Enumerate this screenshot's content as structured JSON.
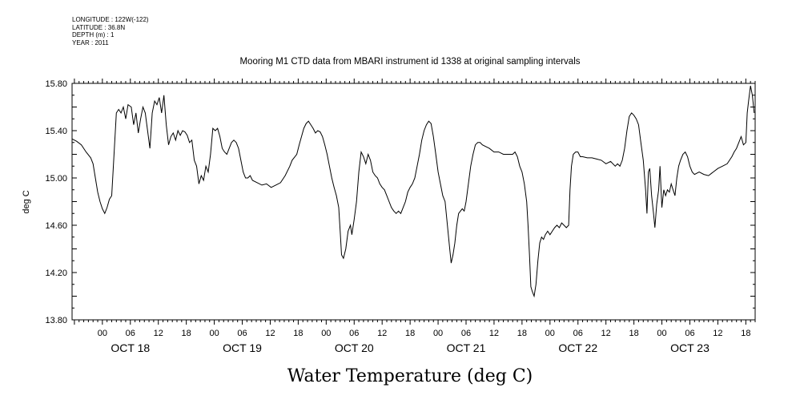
{
  "meta": {
    "longitude": "LONGITUDE : 122W(-122)",
    "latitude": "LATITUDE : 36.8N",
    "depth": "DEPTH (m) : 1",
    "year": "YEAR : 2011"
  },
  "chart_data": {
    "type": "line",
    "title": "Mooring M1 CTD data from MBARI instrument id 1338 at original sampling intervals",
    "xlabel": "Water Temperature (deg C)",
    "ylabel": "deg C",
    "ylim": [
      13.8,
      15.8
    ],
    "yticks": [
      "13.80",
      "14.20",
      "14.60",
      "15.00",
      "15.40",
      "15.80"
    ],
    "xlim_hours_from_oct18_00": [
      -24.5,
      122
    ],
    "hour_ticks": [
      {
        "h": -18,
        "label": "00"
      },
      {
        "h": -12,
        "label": "06"
      },
      {
        "h": -6,
        "label": "12"
      },
      {
        "h": 0,
        "label": "18"
      },
      {
        "h": 6,
        "label": "00"
      },
      {
        "h": 12,
        "label": "06"
      },
      {
        "h": 18,
        "label": "12"
      },
      {
        "h": 24,
        "label": "18"
      },
      {
        "h": 30,
        "label": "00"
      },
      {
        "h": 36,
        "label": "06"
      },
      {
        "h": 42,
        "label": "12"
      },
      {
        "h": 48,
        "label": "18"
      },
      {
        "h": 54,
        "label": "00"
      },
      {
        "h": 60,
        "label": "06"
      },
      {
        "h": 66,
        "label": "12"
      },
      {
        "h": 72,
        "label": "18"
      },
      {
        "h": 78,
        "label": "00"
      },
      {
        "h": 84,
        "label": "06"
      },
      {
        "h": 90,
        "label": "12"
      },
      {
        "h": 96,
        "label": "18"
      },
      {
        "h": 102,
        "label": "00"
      },
      {
        "h": 108,
        "label": "06"
      },
      {
        "h": 114,
        "label": "12"
      },
      {
        "h": 120,
        "label": "18"
      }
    ],
    "date_labels": [
      {
        "h": -12,
        "label": "OCT 18"
      },
      {
        "h": 12,
        "label": "OCT 19"
      },
      {
        "h": 36,
        "label": "OCT 20"
      },
      {
        "h": 60,
        "label": "OCT 21"
      },
      {
        "h": 84,
        "label": "OCT 22"
      },
      {
        "h": 108,
        "label": "OCT 23"
      }
    ],
    "series": [
      {
        "values_h_temp": [
          [
            -24.5,
            15.33
          ],
          [
            -23.5,
            15.31
          ],
          [
            -22.5,
            15.28
          ],
          [
            -21.5,
            15.22
          ],
          [
            -20.5,
            15.17
          ],
          [
            -20,
            15.12
          ],
          [
            -19.5,
            15.0
          ],
          [
            -19,
            14.88
          ],
          [
            -18.5,
            14.8
          ],
          [
            -18,
            14.74
          ],
          [
            -17.5,
            14.7
          ],
          [
            -17,
            14.75
          ],
          [
            -16.5,
            14.82
          ],
          [
            -16,
            14.85
          ],
          [
            -15.5,
            15.2
          ],
          [
            -15,
            15.55
          ],
          [
            -14.5,
            15.58
          ],
          [
            -14,
            15.55
          ],
          [
            -13.5,
            15.6
          ],
          [
            -13,
            15.5
          ],
          [
            -12.5,
            15.62
          ],
          [
            -11.8,
            15.6
          ],
          [
            -11.3,
            15.45
          ],
          [
            -10.8,
            15.55
          ],
          [
            -10.3,
            15.38
          ],
          [
            -9.8,
            15.5
          ],
          [
            -9.3,
            15.6
          ],
          [
            -8.8,
            15.55
          ],
          [
            -8.3,
            15.4
          ],
          [
            -7.8,
            15.25
          ],
          [
            -7.3,
            15.55
          ],
          [
            -6.8,
            15.65
          ],
          [
            -6.3,
            15.62
          ],
          [
            -5.8,
            15.68
          ],
          [
            -5.3,
            15.55
          ],
          [
            -4.8,
            15.7
          ],
          [
            -4.3,
            15.45
          ],
          [
            -3.8,
            15.28
          ],
          [
            -3.3,
            15.35
          ],
          [
            -2.8,
            15.38
          ],
          [
            -2.3,
            15.32
          ],
          [
            -1.8,
            15.4
          ],
          [
            -1.3,
            15.36
          ],
          [
            -0.8,
            15.4
          ],
          [
            -0.3,
            15.39
          ],
          [
            0.2,
            15.36
          ],
          [
            0.7,
            15.3
          ],
          [
            1.2,
            15.32
          ],
          [
            1.7,
            15.15
          ],
          [
            2.2,
            15.1
          ],
          [
            2.7,
            14.95
          ],
          [
            3.2,
            15.02
          ],
          [
            3.7,
            14.98
          ],
          [
            4.2,
            15.1
          ],
          [
            4.7,
            15.05
          ],
          [
            5.2,
            15.2
          ],
          [
            5.7,
            15.42
          ],
          [
            6.2,
            15.4
          ],
          [
            6.7,
            15.42
          ],
          [
            7.2,
            15.35
          ],
          [
            7.7,
            15.25
          ],
          [
            8.2,
            15.22
          ],
          [
            8.7,
            15.2
          ],
          [
            9.2,
            15.25
          ],
          [
            9.7,
            15.3
          ],
          [
            10.2,
            15.32
          ],
          [
            10.7,
            15.3
          ],
          [
            11.2,
            15.25
          ],
          [
            11.7,
            15.15
          ],
          [
            12.2,
            15.05
          ],
          [
            12.7,
            15.0
          ],
          [
            13.2,
            15.0
          ],
          [
            13.7,
            15.02
          ],
          [
            14.2,
            14.98
          ],
          [
            15.2,
            14.96
          ],
          [
            16.2,
            14.94
          ],
          [
            17.2,
            14.95
          ],
          [
            18.2,
            14.92
          ],
          [
            19.2,
            14.94
          ],
          [
            20.2,
            14.96
          ],
          [
            21.2,
            15.02
          ],
          [
            22.2,
            15.1
          ],
          [
            22.7,
            15.15
          ],
          [
            23.7,
            15.2
          ],
          [
            24.2,
            15.28
          ],
          [
            24.7,
            15.35
          ],
          [
            25.2,
            15.42
          ],
          [
            25.7,
            15.46
          ],
          [
            26.2,
            15.48
          ],
          [
            26.7,
            15.45
          ],
          [
            27.2,
            15.42
          ],
          [
            27.7,
            15.38
          ],
          [
            28.2,
            15.4
          ],
          [
            28.7,
            15.39
          ],
          [
            29.2,
            15.35
          ],
          [
            29.7,
            15.28
          ],
          [
            30.2,
            15.2
          ],
          [
            30.7,
            15.1
          ],
          [
            31.2,
            15.0
          ],
          [
            31.7,
            14.92
          ],
          [
            32.2,
            14.85
          ],
          [
            32.7,
            14.75
          ],
          [
            33.0,
            14.55
          ],
          [
            33.3,
            14.35
          ],
          [
            33.7,
            14.32
          ],
          [
            34.2,
            14.4
          ],
          [
            34.7,
            14.55
          ],
          [
            35.2,
            14.6
          ],
          [
            35.5,
            14.52
          ],
          [
            36.0,
            14.65
          ],
          [
            36.5,
            14.8
          ],
          [
            37.0,
            15.05
          ],
          [
            37.5,
            15.22
          ],
          [
            38.0,
            15.18
          ],
          [
            38.5,
            15.12
          ],
          [
            39.0,
            15.2
          ],
          [
            39.5,
            15.15
          ],
          [
            40.0,
            15.05
          ],
          [
            40.5,
            15.02
          ],
          [
            41.0,
            15.0
          ],
          [
            41.5,
            14.95
          ],
          [
            42.0,
            14.92
          ],
          [
            42.5,
            14.9
          ],
          [
            43.0,
            14.85
          ],
          [
            43.5,
            14.8
          ],
          [
            44.0,
            14.75
          ],
          [
            44.5,
            14.72
          ],
          [
            45.0,
            14.7
          ],
          [
            45.5,
            14.72
          ],
          [
            46.0,
            14.7
          ],
          [
            46.5,
            14.75
          ],
          [
            47.0,
            14.8
          ],
          [
            47.5,
            14.88
          ],
          [
            48.0,
            14.92
          ],
          [
            48.5,
            14.95
          ],
          [
            49.0,
            15.0
          ],
          [
            49.5,
            15.1
          ],
          [
            50.0,
            15.2
          ],
          [
            50.5,
            15.32
          ],
          [
            51.0,
            15.4
          ],
          [
            51.5,
            15.45
          ],
          [
            52.0,
            15.48
          ],
          [
            52.5,
            15.46
          ],
          [
            53.0,
            15.35
          ],
          [
            53.5,
            15.2
          ],
          [
            54.0,
            15.05
          ],
          [
            54.5,
            14.95
          ],
          [
            55.0,
            14.85
          ],
          [
            55.5,
            14.8
          ],
          [
            56.0,
            14.6
          ],
          [
            56.5,
            14.4
          ],
          [
            56.8,
            14.28
          ],
          [
            57.2,
            14.35
          ],
          [
            57.6,
            14.45
          ],
          [
            58.0,
            14.6
          ],
          [
            58.4,
            14.7
          ],
          [
            58.8,
            14.72
          ],
          [
            59.2,
            14.74
          ],
          [
            59.6,
            14.72
          ],
          [
            60.0,
            14.8
          ],
          [
            60.5,
            14.95
          ],
          [
            61.0,
            15.1
          ],
          [
            61.5,
            15.2
          ],
          [
            62.0,
            15.28
          ],
          [
            62.5,
            15.3
          ],
          [
            63.0,
            15.3
          ],
          [
            63.5,
            15.28
          ],
          [
            64.0,
            15.27
          ],
          [
            65.0,
            15.25
          ],
          [
            66.0,
            15.22
          ],
          [
            67.0,
            15.22
          ],
          [
            68.0,
            15.2
          ],
          [
            69.0,
            15.2
          ],
          [
            70.0,
            15.2
          ],
          [
            70.5,
            15.22
          ],
          [
            71.0,
            15.18
          ],
          [
            71.5,
            15.1
          ],
          [
            72.0,
            15.05
          ],
          [
            72.5,
            14.95
          ],
          [
            73.0,
            14.8
          ],
          [
            73.3,
            14.6
          ],
          [
            73.6,
            14.35
          ],
          [
            73.9,
            14.08
          ],
          [
            74.2,
            14.04
          ],
          [
            74.6,
            14.0
          ],
          [
            75.0,
            14.1
          ],
          [
            75.4,
            14.3
          ],
          [
            75.8,
            14.45
          ],
          [
            76.2,
            14.5
          ],
          [
            76.6,
            14.48
          ],
          [
            77.0,
            14.52
          ],
          [
            77.5,
            14.55
          ],
          [
            78.0,
            14.52
          ],
          [
            78.5,
            14.55
          ],
          [
            79.0,
            14.58
          ],
          [
            79.5,
            14.6
          ],
          [
            80.0,
            14.58
          ],
          [
            80.5,
            14.62
          ],
          [
            81.0,
            14.6
          ],
          [
            81.5,
            14.58
          ],
          [
            82.0,
            14.6
          ],
          [
            82.3,
            14.9
          ],
          [
            82.6,
            15.1
          ],
          [
            83.0,
            15.2
          ],
          [
            83.5,
            15.22
          ],
          [
            84.0,
            15.22
          ],
          [
            84.5,
            15.18
          ],
          [
            85.0,
            15.18
          ],
          [
            86.0,
            15.17
          ],
          [
            87.0,
            15.17
          ],
          [
            88.0,
            15.16
          ],
          [
            89.0,
            15.15
          ],
          [
            90.0,
            15.12
          ],
          [
            91.0,
            15.14
          ],
          [
            92.0,
            15.1
          ],
          [
            92.5,
            15.12
          ],
          [
            93.0,
            15.1
          ],
          [
            93.5,
            15.15
          ],
          [
            94.0,
            15.25
          ],
          [
            94.5,
            15.4
          ],
          [
            95.0,
            15.52
          ],
          [
            95.5,
            15.55
          ],
          [
            96.0,
            15.53
          ],
          [
            96.5,
            15.5
          ],
          [
            97.0,
            15.45
          ],
          [
            97.5,
            15.3
          ],
          [
            98.0,
            15.15
          ],
          [
            98.5,
            14.9
          ],
          [
            98.8,
            14.7
          ],
          [
            99.1,
            15.05
          ],
          [
            99.4,
            15.08
          ],
          [
            99.8,
            14.85
          ],
          [
            100.2,
            14.7
          ],
          [
            100.5,
            14.58
          ],
          [
            100.9,
            14.78
          ],
          [
            101.3,
            14.9
          ],
          [
            101.6,
            15.1
          ],
          [
            102.0,
            14.75
          ],
          [
            102.4,
            14.9
          ],
          [
            102.8,
            14.85
          ],
          [
            103.2,
            14.9
          ],
          [
            103.6,
            14.88
          ],
          [
            104.0,
            14.95
          ],
          [
            104.4,
            14.9
          ],
          [
            104.8,
            14.85
          ],
          [
            105.2,
            15.0
          ],
          [
            105.6,
            15.1
          ],
          [
            106.0,
            15.15
          ],
          [
            106.5,
            15.2
          ],
          [
            107.0,
            15.22
          ],
          [
            107.5,
            15.18
          ],
          [
            108.0,
            15.1
          ],
          [
            108.5,
            15.05
          ],
          [
            109.0,
            15.03
          ],
          [
            110.0,
            15.05
          ],
          [
            111.0,
            15.03
          ],
          [
            112.0,
            15.02
          ],
          [
            113.0,
            15.05
          ],
          [
            114.0,
            15.08
          ],
          [
            115.0,
            15.1
          ],
          [
            116.0,
            15.12
          ],
          [
            116.5,
            15.15
          ],
          [
            117.0,
            15.18
          ],
          [
            117.5,
            15.22
          ],
          [
            118.0,
            15.25
          ],
          [
            118.5,
            15.3
          ],
          [
            119.0,
            15.35
          ],
          [
            119.5,
            15.28
          ],
          [
            120.0,
            15.3
          ],
          [
            120.3,
            15.55
          ],
          [
            120.6,
            15.65
          ],
          [
            121.0,
            15.78
          ],
          [
            121.4,
            15.7
          ],
          [
            121.8,
            15.55
          ]
        ]
      }
    ]
  }
}
